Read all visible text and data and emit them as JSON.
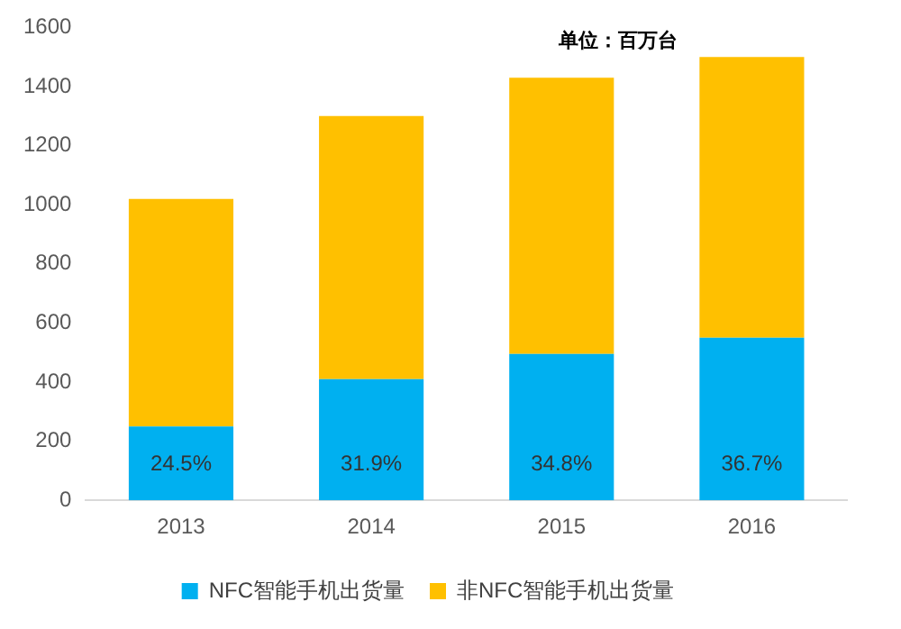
{
  "chart_data": {
    "type": "bar",
    "stacked": true,
    "categories": [
      "2013",
      "2014",
      "2015",
      "2016"
    ],
    "series": [
      {
        "name": "NFC智能手机出货量",
        "color": "#00b0f0",
        "values": [
          250,
          410,
          495,
          550
        ]
      },
      {
        "name": "非NFC智能手机出货量",
        "color": "#ffc000",
        "values": [
          770,
          890,
          935,
          950
        ]
      }
    ],
    "ylim": [
      0,
      1600
    ],
    "yticks": [
      0,
      200,
      400,
      600,
      800,
      1000,
      1200,
      1400,
      1600
    ],
    "grid": false,
    "legend": "bottom",
    "annotations": [
      "单位：百万台",
      "24.5%",
      "31.9%",
      "34.8%",
      "36.7%"
    ]
  }
}
